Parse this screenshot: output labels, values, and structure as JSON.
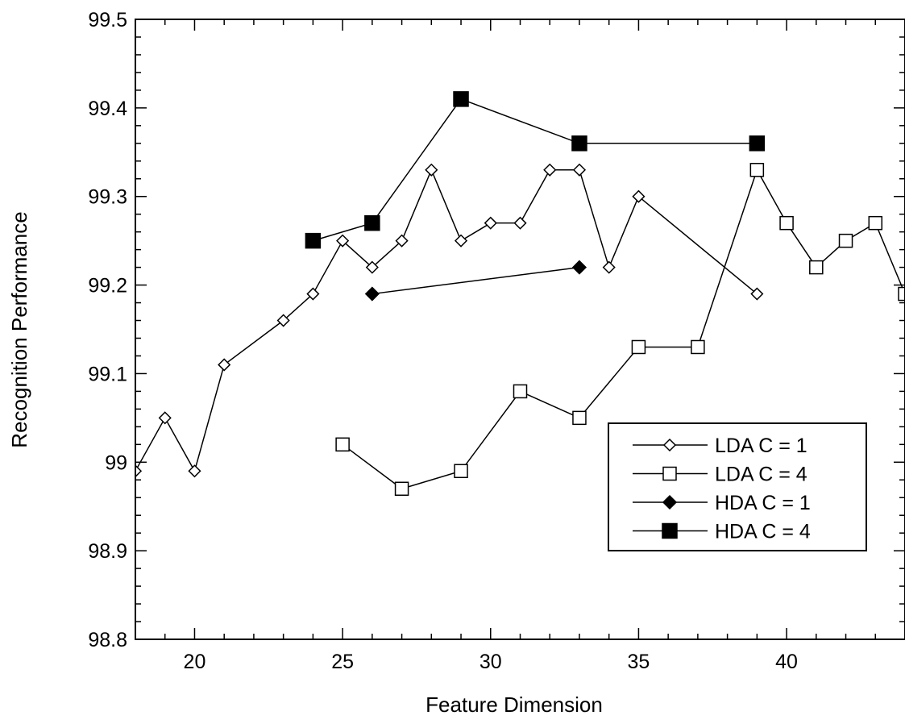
{
  "chart_data": {
    "type": "line",
    "title": "",
    "xlabel": "Feature Dimension",
    "ylabel": "Recognition Performance",
    "xlim": [
      18,
      44
    ],
    "ylim": [
      98.8,
      99.5
    ],
    "x_ticks": [
      {
        "value": 20,
        "label": "20"
      },
      {
        "value": 25,
        "label": "25"
      },
      {
        "value": 30,
        "label": "30"
      },
      {
        "value": 35,
        "label": "35"
      },
      {
        "value": 40,
        "label": "40"
      }
    ],
    "y_ticks": [
      {
        "value": 98.8,
        "label": "98.8"
      },
      {
        "value": 98.9,
        "label": "98.9"
      },
      {
        "value": 99.0,
        "label": "99"
      },
      {
        "value": 99.1,
        "label": "99.1"
      },
      {
        "value": 99.2,
        "label": "99.2"
      },
      {
        "value": 99.3,
        "label": "99.3"
      },
      {
        "value": 99.4,
        "label": "99.4"
      },
      {
        "value": 99.5,
        "label": "99.5"
      }
    ],
    "grid": false,
    "legend_position": "lower-right",
    "series": [
      {
        "name": "LDA C = 1",
        "marker": "diamond-open",
        "points": [
          [
            18,
            98.99
          ],
          [
            19,
            99.05
          ],
          [
            20,
            98.99
          ],
          [
            21,
            99.11
          ],
          [
            23,
            99.16
          ],
          [
            24,
            99.19
          ],
          [
            25,
            99.25
          ],
          [
            26,
            99.22
          ],
          [
            27,
            99.25
          ],
          [
            28,
            99.33
          ],
          [
            29,
            99.25
          ],
          [
            30,
            99.27
          ],
          [
            31,
            99.27
          ],
          [
            32,
            99.33
          ],
          [
            33,
            99.33
          ],
          [
            34,
            99.22
          ],
          [
            35,
            99.3
          ],
          [
            39,
            99.19
          ]
        ]
      },
      {
        "name": "LDA C = 4",
        "marker": "square-open",
        "points": [
          [
            25,
            99.02
          ],
          [
            27,
            98.97
          ],
          [
            29,
            98.99
          ],
          [
            31,
            99.08
          ],
          [
            33,
            99.05
          ],
          [
            35,
            99.13
          ],
          [
            37,
            99.13
          ],
          [
            39,
            99.33
          ],
          [
            40,
            99.27
          ],
          [
            41,
            99.22
          ],
          [
            42,
            99.25
          ],
          [
            43,
            99.27
          ],
          [
            44,
            99.19
          ]
        ]
      },
      {
        "name": "HDA C = 1",
        "marker": "diamond-filled",
        "points": [
          [
            26,
            99.19
          ],
          [
            33,
            99.22
          ]
        ]
      },
      {
        "name": "HDA C = 4",
        "marker": "square-filled",
        "points": [
          [
            24,
            99.25
          ],
          [
            26,
            99.27
          ],
          [
            29,
            99.41
          ],
          [
            33,
            99.36
          ],
          [
            39,
            99.36
          ]
        ]
      }
    ],
    "legend": [
      {
        "label": "LDA  C = 1",
        "marker": "diamond-open"
      },
      {
        "label": "LDA  C = 4",
        "marker": "square-open"
      },
      {
        "label": "HDA  C = 1",
        "marker": "diamond-filled"
      },
      {
        "label": "HDA  C = 4",
        "marker": "square-filled"
      }
    ]
  }
}
